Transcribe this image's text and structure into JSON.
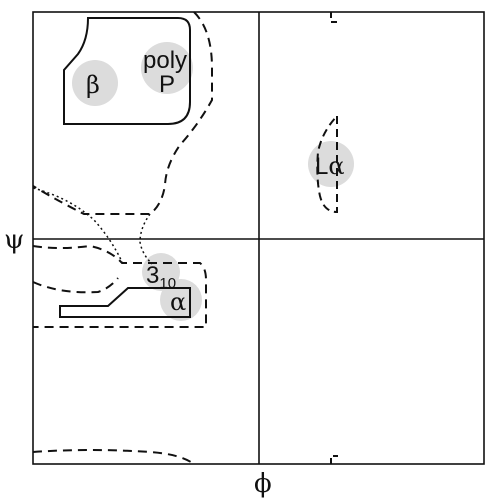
{
  "diagram": {
    "type": "ramachandran-plot",
    "axes": {
      "x_label": "ϕ",
      "y_label": "ψ"
    },
    "regions": [
      {
        "id": "beta",
        "label": "β"
      },
      {
        "id": "polyp",
        "label_line1": "poly",
        "label_line2": "P"
      },
      {
        "id": "three10",
        "label_main": "3",
        "label_sub": "10"
      },
      {
        "id": "alpha",
        "label": "α"
      },
      {
        "id": "lalpha",
        "label_prefix": "L",
        "label_greek": "α"
      }
    ],
    "colors": {
      "ink": "#111111",
      "marker": "#dcdcdc",
      "background": "#ffffff"
    }
  }
}
